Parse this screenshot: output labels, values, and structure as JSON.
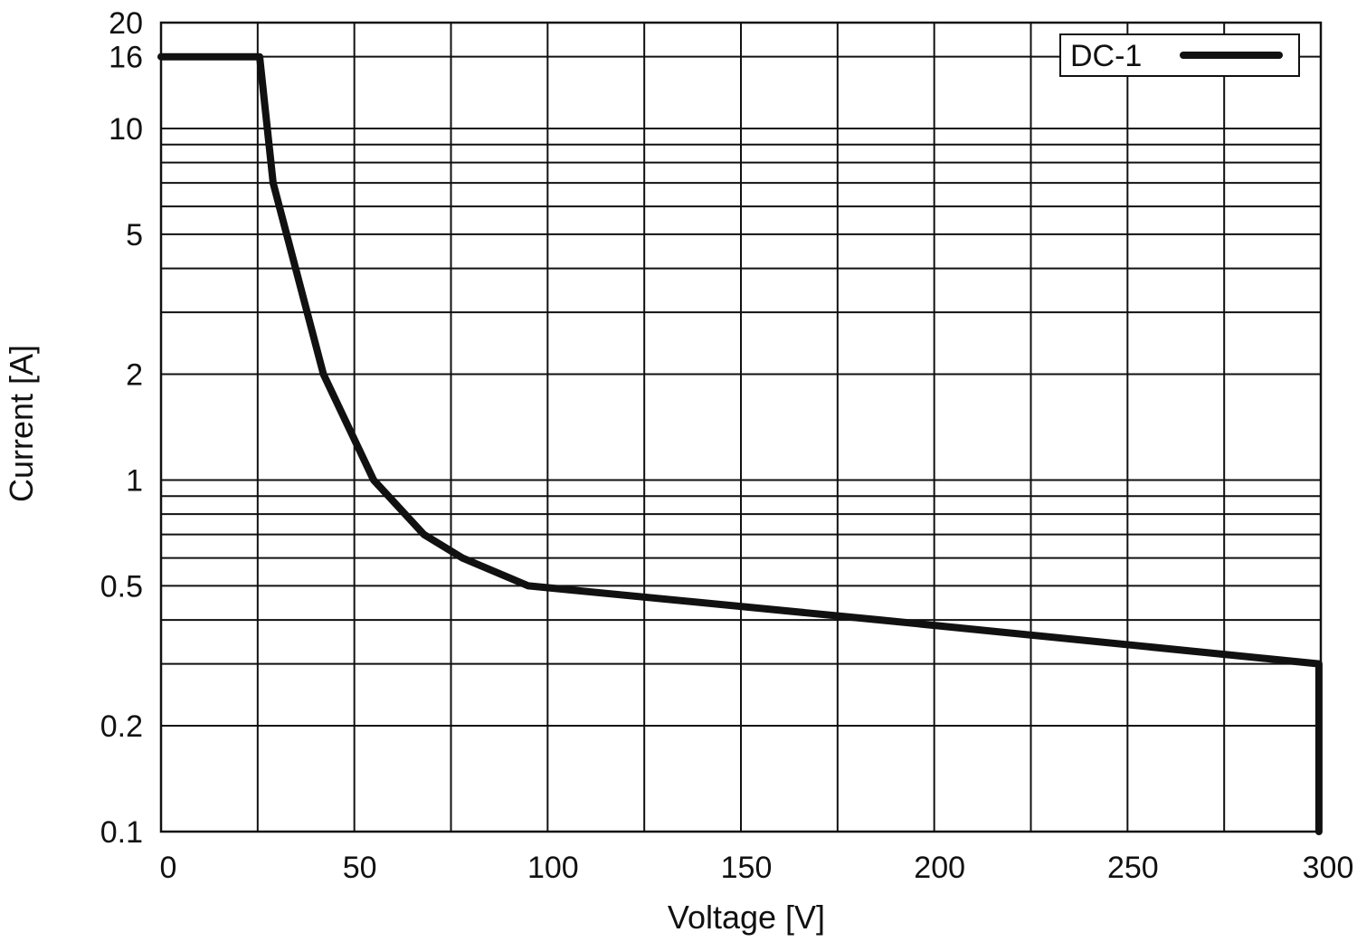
{
  "chart_data": {
    "type": "line",
    "title": "",
    "xlabel": "Voltage [V]",
    "ylabel": "Current [A]",
    "xlim": [
      0,
      300
    ],
    "ylim": [
      0.1,
      20
    ],
    "yscale": "log",
    "grid": true,
    "x_gridlines": [
      0,
      25,
      50,
      75,
      100,
      125,
      150,
      175,
      200,
      225,
      250,
      275,
      300
    ],
    "y_gridlines": [
      0.1,
      0.2,
      0.3,
      0.4,
      0.5,
      0.6,
      0.7,
      0.8,
      0.9,
      1,
      2,
      3,
      4,
      5,
      6,
      7,
      8,
      9,
      10,
      16,
      20
    ],
    "x_ticks": [
      0,
      50,
      100,
      150,
      200,
      250,
      300
    ],
    "x_tick_labels": [
      "0",
      "50",
      "100",
      "150",
      "200",
      "250",
      "300"
    ],
    "y_ticks": [
      20,
      16,
      10,
      5,
      2,
      1,
      0.5,
      0.2,
      0.1
    ],
    "y_tick_labels": [
      "20",
      "16",
      "10",
      "5",
      "2",
      "1",
      "0.5",
      "0.2",
      "0.1"
    ],
    "legend_position": "top-right",
    "series": [
      {
        "name": "DC-1",
        "color": "#111111",
        "points": [
          [
            0,
            16
          ],
          [
            25.5,
            16
          ],
          [
            29,
            7
          ],
          [
            42,
            2
          ],
          [
            55,
            1
          ],
          [
            68,
            0.7
          ],
          [
            78,
            0.6
          ],
          [
            95,
            0.5
          ],
          [
            186,
            0.4
          ],
          [
            299.5,
            0.3
          ],
          [
            299.5,
            0.1
          ]
        ]
      }
    ]
  }
}
